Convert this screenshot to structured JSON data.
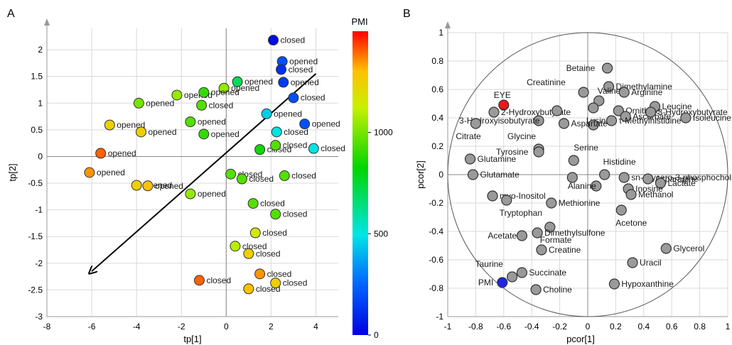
{
  "chart_data": [
    {
      "panel": "A",
      "type": "scatter",
      "xlabel": "tp[1]",
      "ylabel": "tp[2]",
      "xlim": [
        -8,
        5
      ],
      "ylim": [
        -3,
        2.4
      ],
      "xticks": [
        -8,
        -6,
        -4,
        -2,
        0,
        2,
        4
      ],
      "yticks": [
        -3,
        -2.5,
        -2,
        -1.5,
        -1,
        -0.5,
        0,
        0.5,
        1,
        1.5,
        2
      ],
      "grid": true,
      "colorbar": {
        "title": "PMI",
        "min": 0,
        "max": 1500,
        "ticks": [
          0,
          500,
          1000
        ]
      },
      "arrow": {
        "from": [
          4.0,
          1.55
        ],
        "to": [
          -6.0,
          -2.15
        ]
      },
      "points": [
        {
          "x": 2.1,
          "y": 2.18,
          "pmi": 30,
          "label": "closed"
        },
        {
          "x": 2.5,
          "y": 1.78,
          "pmi": 200,
          "label": "opened"
        },
        {
          "x": 2.45,
          "y": 1.63,
          "pmi": 120,
          "label": "closed"
        },
        {
          "x": 0.5,
          "y": 1.4,
          "pmi": 700,
          "label": "opened"
        },
        {
          "x": 2.55,
          "y": 1.39,
          "pmi": 150,
          "label": "opened"
        },
        {
          "x": -2.2,
          "y": 1.15,
          "pmi": 1050,
          "label": "opened"
        },
        {
          "x": -0.1,
          "y": 1.28,
          "pmi": 1050,
          "label": "opened"
        },
        {
          "x": -1.0,
          "y": 1.2,
          "pmi": 900,
          "label": "opened"
        },
        {
          "x": -3.9,
          "y": 1.0,
          "pmi": 1000,
          "label": "opened"
        },
        {
          "x": -1.1,
          "y": 0.96,
          "pmi": 950,
          "label": "closed"
        },
        {
          "x": 3.0,
          "y": 1.1,
          "pmi": 200,
          "label": "closed"
        },
        {
          "x": 1.8,
          "y": 0.8,
          "pmi": 450,
          "label": "opened"
        },
        {
          "x": -5.2,
          "y": 0.59,
          "pmi": 1250,
          "label": "opened"
        },
        {
          "x": -3.8,
          "y": 0.46,
          "pmi": 1250,
          "label": "opened"
        },
        {
          "x": -1.6,
          "y": 0.65,
          "pmi": 950,
          "label": "opened"
        },
        {
          "x": -1.0,
          "y": 0.42,
          "pmi": 900,
          "label": "opened"
        },
        {
          "x": 2.25,
          "y": 0.46,
          "pmi": 500,
          "label": "closed"
        },
        {
          "x": 3.5,
          "y": 0.61,
          "pmi": 200,
          "label": "opened"
        },
        {
          "x": 1.5,
          "y": 0.13,
          "pmi": 850,
          "label": "closed"
        },
        {
          "x": 2.2,
          "y": 0.21,
          "pmi": 950,
          "label": "closed"
        },
        {
          "x": 3.9,
          "y": 0.15,
          "pmi": 500,
          "label": "closed"
        },
        {
          "x": -5.6,
          "y": 0.06,
          "pmi": 1400,
          "label": "opened"
        },
        {
          "x": -6.1,
          "y": -0.3,
          "pmi": 1350,
          "label": "opened"
        },
        {
          "x": 0.2,
          "y": -0.33,
          "pmi": 950,
          "label": "closed"
        },
        {
          "x": 0.7,
          "y": -0.42,
          "pmi": 950,
          "label": "closed"
        },
        {
          "x": 2.6,
          "y": -0.36,
          "pmi": 950,
          "label": "closed"
        },
        {
          "x": -4.0,
          "y": -0.54,
          "pmi": 1250,
          "label": "opened"
        },
        {
          "x": -3.5,
          "y": -0.55,
          "pmi": 1300,
          "label": "opened"
        },
        {
          "x": -1.6,
          "y": -0.7,
          "pmi": 1050,
          "label": "opened"
        },
        {
          "x": 1.2,
          "y": -0.88,
          "pmi": 950,
          "label": "closed"
        },
        {
          "x": 2.2,
          "y": -1.08,
          "pmi": 950,
          "label": "closed"
        },
        {
          "x": 1.3,
          "y": -1.43,
          "pmi": 1150,
          "label": "closed"
        },
        {
          "x": 0.4,
          "y": -1.68,
          "pmi": 1100,
          "label": "closed"
        },
        {
          "x": 1.0,
          "y": -1.82,
          "pmi": 1250,
          "label": "closed"
        },
        {
          "x": -1.2,
          "y": -2.32,
          "pmi": 1400,
          "label": "closed"
        },
        {
          "x": 1.5,
          "y": -2.2,
          "pmi": 1350,
          "label": "closed"
        },
        {
          "x": 2.2,
          "y": -2.37,
          "pmi": 1250,
          "label": "closed"
        },
        {
          "x": 1.0,
          "y": -2.48,
          "pmi": 1300,
          "label": "closed"
        }
      ]
    },
    {
      "panel": "B",
      "type": "scatter",
      "xlabel": "pcor[1]",
      "ylabel": "pcor[2]",
      "xlim": [
        -1,
        1
      ],
      "ylim": [
        -1,
        1
      ],
      "xticks": [
        -1,
        -0.8,
        -0.6,
        -0.4,
        -0.2,
        0,
        0.2,
        0.4,
        0.6,
        0.8,
        1
      ],
      "yticks": [
        -1,
        -0.8,
        -0.6,
        -0.4,
        -0.2,
        0,
        0.2,
        0.4,
        0.6,
        0.8,
        1
      ],
      "grid": true,
      "colors": {
        "EYE": "#e8191a",
        "PMI": "#1f24e6",
        "default": "#9a9a9a"
      },
      "points": [
        {
          "x": 0.14,
          "y": 0.75,
          "label": "Betaine"
        },
        {
          "x": 0.15,
          "y": 0.62,
          "label": "Dimethylamine"
        },
        {
          "x": 0.08,
          "y": 0.52,
          "label": "Valine"
        },
        {
          "x": -0.03,
          "y": 0.58,
          "label": "Creatinine"
        },
        {
          "x": 0.26,
          "y": 0.58,
          "label": "Arginine"
        },
        {
          "x": 0.22,
          "y": 0.45,
          "label": "Ornithine"
        },
        {
          "x": 0.04,
          "y": 0.47,
          "label": "Lysine"
        },
        {
          "x": 0.04,
          "y": 0.35,
          "label": ""
        },
        {
          "x": 0.27,
          "y": 0.41,
          "label": "Ascorbate"
        },
        {
          "x": 0.17,
          "y": 0.38,
          "label": "τ-Methylhistidine"
        },
        {
          "x": 0.48,
          "y": 0.48,
          "label": "Leucine"
        },
        {
          "x": 0.45,
          "y": 0.44,
          "label": "3-Hydroxybutyrate"
        },
        {
          "x": 0.7,
          "y": 0.4,
          "label": "Isoleucine"
        },
        {
          "x": -0.6,
          "y": 0.49,
          "label": "EYE",
          "highlight": "EYE"
        },
        {
          "x": -0.67,
          "y": 0.44,
          "label": "2-Hydroxybutyrate"
        },
        {
          "x": -0.35,
          "y": 0.38,
          "label": "3-Hydroxyisobutyrate"
        },
        {
          "x": -0.22,
          "y": 0.45,
          "label": ""
        },
        {
          "x": -0.17,
          "y": 0.36,
          "label": "Aspartate"
        },
        {
          "x": -0.8,
          "y": 0.36,
          "label": "Citrate"
        },
        {
          "x": -0.35,
          "y": 0.18,
          "label": "Glycine"
        },
        {
          "x": -0.35,
          "y": 0.16,
          "label": "Tyrosine"
        },
        {
          "x": -0.1,
          "y": 0.1,
          "label": "Serine"
        },
        {
          "x": -0.84,
          "y": 0.11,
          "label": "Glutamine"
        },
        {
          "x": -0.82,
          "y": 0.0,
          "label": "Glutamate"
        },
        {
          "x": 0.12,
          "y": 0.0,
          "label": "Histidine"
        },
        {
          "x": 0.26,
          "y": -0.02,
          "label": "sn-Glycero-3-phosphocholine"
        },
        {
          "x": 0.43,
          "y": -0.03,
          "label": "Asparagine"
        },
        {
          "x": 0.52,
          "y": -0.06,
          "label": "Lactate"
        },
        {
          "x": 0.06,
          "y": -0.08,
          "label": "Alanine"
        },
        {
          "x": -0.11,
          "y": -0.02,
          "label": ""
        },
        {
          "x": 0.29,
          "y": -0.1,
          "label": "Inosine"
        },
        {
          "x": 0.31,
          "y": -0.14,
          "label": "Methanol"
        },
        {
          "x": -0.68,
          "y": -0.15,
          "label": "myo-Inositol"
        },
        {
          "x": -0.58,
          "y": -0.18,
          "label": "Tryptophan"
        },
        {
          "x": -0.26,
          "y": -0.2,
          "label": "Methionine"
        },
        {
          "x": 0.24,
          "y": -0.25,
          "label": "Acetone"
        },
        {
          "x": -0.27,
          "y": -0.37,
          "label": "Formate"
        },
        {
          "x": -0.36,
          "y": -0.41,
          "label": "Dimethylsulfone"
        },
        {
          "x": -0.47,
          "y": -0.43,
          "label": "Acetate"
        },
        {
          "x": -0.33,
          "y": -0.53,
          "label": "Creatine"
        },
        {
          "x": 0.56,
          "y": -0.52,
          "label": "Glycerol"
        },
        {
          "x": 0.32,
          "y": -0.62,
          "label": "Uracil"
        },
        {
          "x": -0.47,
          "y": -0.69,
          "label": "Succinate"
        },
        {
          "x": -0.54,
          "y": -0.72,
          "label": "Taurine"
        },
        {
          "x": -0.61,
          "y": -0.76,
          "label": "PMI",
          "highlight": "PMI"
        },
        {
          "x": -0.37,
          "y": -0.81,
          "label": "Choline"
        },
        {
          "x": 0.19,
          "y": -0.77,
          "label": "Hypoxanthine"
        }
      ]
    }
  ]
}
